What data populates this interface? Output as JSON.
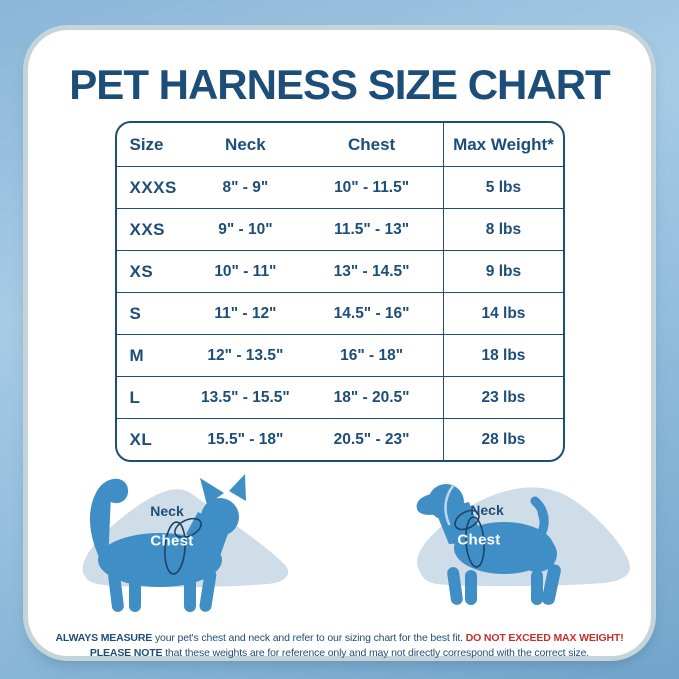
{
  "title": "PET HARNESS SIZE CHART",
  "chart_data": {
    "type": "table",
    "title": "PET HARNESS SIZE CHART",
    "columns": [
      "Size",
      "Neck",
      "Chest",
      "Max Weight*"
    ],
    "rows": [
      [
        "XXXS",
        "8\" - 9\"",
        "10\" - 11.5\"",
        "5 lbs"
      ],
      [
        "XXS",
        "9\" - 10\"",
        "11.5\" - 13\"",
        "8 lbs"
      ],
      [
        "XS",
        "10\" - 11\"",
        "13\" - 14.5\"",
        "9 lbs"
      ],
      [
        "S",
        "11\" - 12\"",
        "14.5\" - 16\"",
        "14 lbs"
      ],
      [
        "M",
        "12\" - 13.5\"",
        "16\" - 18\"",
        "18 lbs"
      ],
      [
        "L",
        "13.5\" - 15.5\"",
        "18\" - 20.5\"",
        "23 lbs"
      ],
      [
        "XL",
        "15.5\" - 18\"",
        "20.5\" - 23\"",
        "28 lbs"
      ]
    ]
  },
  "figures": {
    "cat": {
      "neck_label": "Neck",
      "chest_label": "Chest"
    },
    "dog": {
      "neck_label": "Neck",
      "chest_label": "Chest"
    }
  },
  "footnote": {
    "line1_bold": "ALWAYS MEASURE",
    "line1_text": "your pet's chest and neck and refer to our sizing chart for the best fit.",
    "line1_warning": "DO NOT EXCEED MAX WEIGHT!",
    "line2_bold": "PLEASE NOTE",
    "line2_text": "that these weights are for reference only and may not directly correspond with the correct size."
  },
  "colors": {
    "navy": "#1d4e79",
    "warning_red": "#c62f2f",
    "pet_blue": "#3f8fc6",
    "blob_blue": "#cfdde8",
    "card_outline": "#c5d4d9",
    "bg_top": "#a6cbe5",
    "bg_bottom": "#72a5cc"
  }
}
